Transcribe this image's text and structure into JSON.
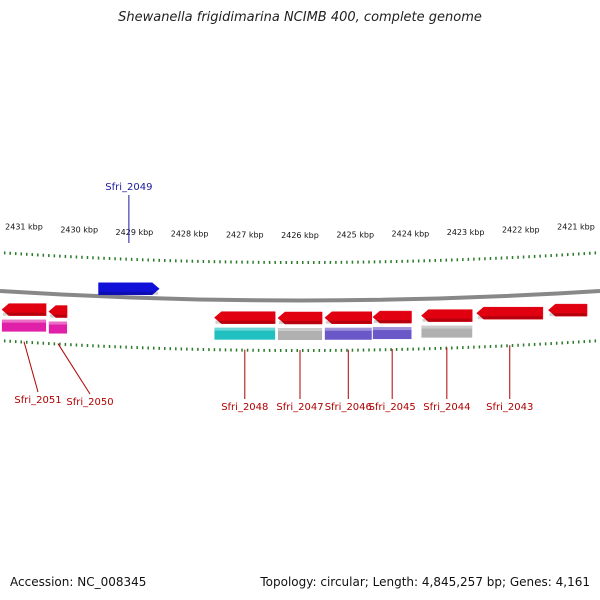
{
  "title": "Shewanella frigidimarina NCIMB 400, complete genome",
  "footer": {
    "accession": "Accession: NC_008345",
    "summary": "Topology: circular; Length: 4,845,257 bp; Genes: 4,161"
  },
  "colors": {
    "forward_gene": "#1010d8",
    "reverse_gene": "#e00010",
    "backbone": "#888888",
    "tick": "#2a7a2a",
    "label_reverse": "#b00000",
    "label_forward": "#1a1aa0"
  },
  "scale": {
    "unit": "kbp",
    "ticks": [
      {
        "kbp": 2431,
        "label": "2431 kbp"
      },
      {
        "kbp": 2430,
        "label": "2430 kbp"
      },
      {
        "kbp": 2429,
        "label": "2429 kbp"
      },
      {
        "kbp": 2428,
        "label": "2428 kbp"
      },
      {
        "kbp": 2427,
        "label": "2427 kbp"
      },
      {
        "kbp": 2426,
        "label": "2426 kbp"
      },
      {
        "kbp": 2425,
        "label": "2425 kbp"
      },
      {
        "kbp": 2424,
        "label": "2424 kbp"
      },
      {
        "kbp": 2423,
        "label": "2423 kbp"
      },
      {
        "kbp": 2422,
        "label": "2422 kbp"
      },
      {
        "kbp": 2421,
        "label": "2421 kbp"
      }
    ]
  },
  "genes": [
    {
      "label": "Sfri_2051",
      "strand": "-",
      "start_kbp": 2431.4,
      "end_kbp": 2430.6,
      "func_color": "#e020a8"
    },
    {
      "label": "Sfri_2050",
      "strand": "-",
      "start_kbp": 2430.55,
      "end_kbp": 2430.22,
      "func_color": "#e020a8"
    },
    {
      "label": "Sfri_2049",
      "strand": "+",
      "start_kbp": 2429.65,
      "end_kbp": 2428.55,
      "func_color": null
    },
    {
      "label": "Sfri_2048",
      "strand": "-",
      "start_kbp": 2427.55,
      "end_kbp": 2426.45,
      "func_color": "#20c0c0"
    },
    {
      "label": "Sfri_2047",
      "strand": "-",
      "start_kbp": 2426.4,
      "end_kbp": 2425.6,
      "func_color": "#b0b0b0"
    },
    {
      "label": "Sfri_2046",
      "strand": "-",
      "start_kbp": 2425.55,
      "end_kbp": 2424.7,
      "func_color": "#6a58c8"
    },
    {
      "label": "Sfri_2045",
      "strand": "-",
      "start_kbp": 2424.68,
      "end_kbp": 2423.98,
      "func_color": "#6a58c8"
    },
    {
      "label": "Sfri_2044",
      "strand": "-",
      "start_kbp": 2423.8,
      "end_kbp": 2422.88,
      "func_color": "#b0b0b0"
    },
    {
      "label": "Sfri_2043",
      "strand": "-",
      "start_kbp": 2422.8,
      "end_kbp": 2421.6,
      "func_color": null
    },
    {
      "label": "",
      "strand": "-",
      "start_kbp": 2421.5,
      "end_kbp": 2420.8,
      "func_color": null
    }
  ]
}
